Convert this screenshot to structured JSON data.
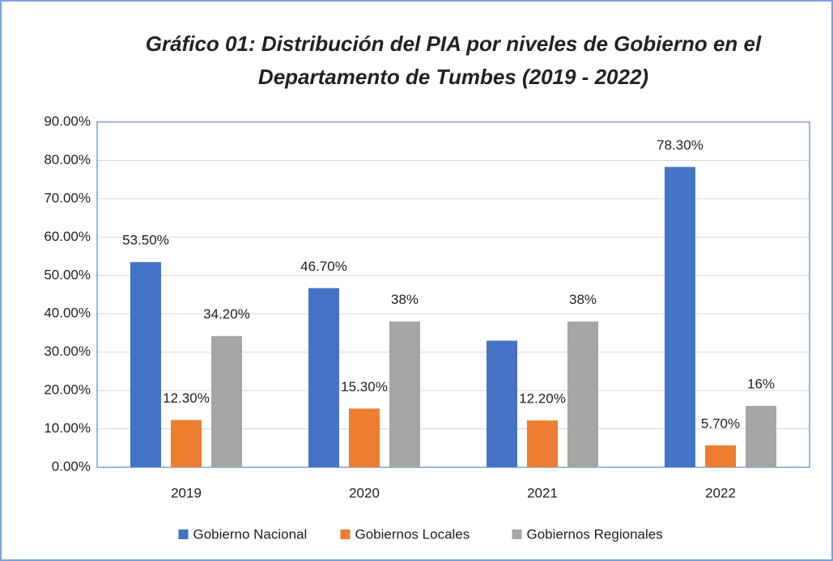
{
  "chart_data": {
    "type": "bar",
    "title": [
      "Gráfico 01: Distribución del PIA por niveles de Gobierno en el",
      "Departamento de Tumbes (2019 - 2022)"
    ],
    "categories": [
      "2019",
      "2020",
      "2021",
      "2022"
    ],
    "series": [
      {
        "name": "Gobierno Nacional",
        "color": "#4472c4",
        "values": [
          53.5,
          46.7,
          33,
          78.3
        ],
        "value_labels": [
          "53.50%",
          "46.70%",
          null,
          "78.30%"
        ]
      },
      {
        "name": "Gobiernos Locales",
        "color": "#ed7d31",
        "values": [
          12.3,
          15.3,
          12.2,
          5.7
        ],
        "value_labels": [
          "12.30%",
          "15.30%",
          "12.20%",
          "5.70%"
        ]
      },
      {
        "name": "Gobiernos Regionales",
        "color": "#a5a5a5",
        "values": [
          34.2,
          38,
          38,
          16
        ],
        "value_labels": [
          "34.20%",
          "38%",
          "38%",
          "16%"
        ]
      }
    ],
    "ylim": [
      0,
      90
    ],
    "yticks": [
      {
        "value": 0,
        "label": "0.00%"
      },
      {
        "value": 10,
        "label": "10.00%"
      },
      {
        "value": 20,
        "label": "20.00%"
      },
      {
        "value": 30,
        "label": "30.00%"
      },
      {
        "value": 40,
        "label": "40.00%"
      },
      {
        "value": 50,
        "label": "50.00%"
      },
      {
        "value": 60,
        "label": "60.00%"
      },
      {
        "value": 70,
        "label": "70.00%"
      },
      {
        "value": 80,
        "label": "80.00%"
      },
      {
        "value": 90,
        "label": "90.00%"
      }
    ],
    "grid": true,
    "legend": "bottom"
  }
}
